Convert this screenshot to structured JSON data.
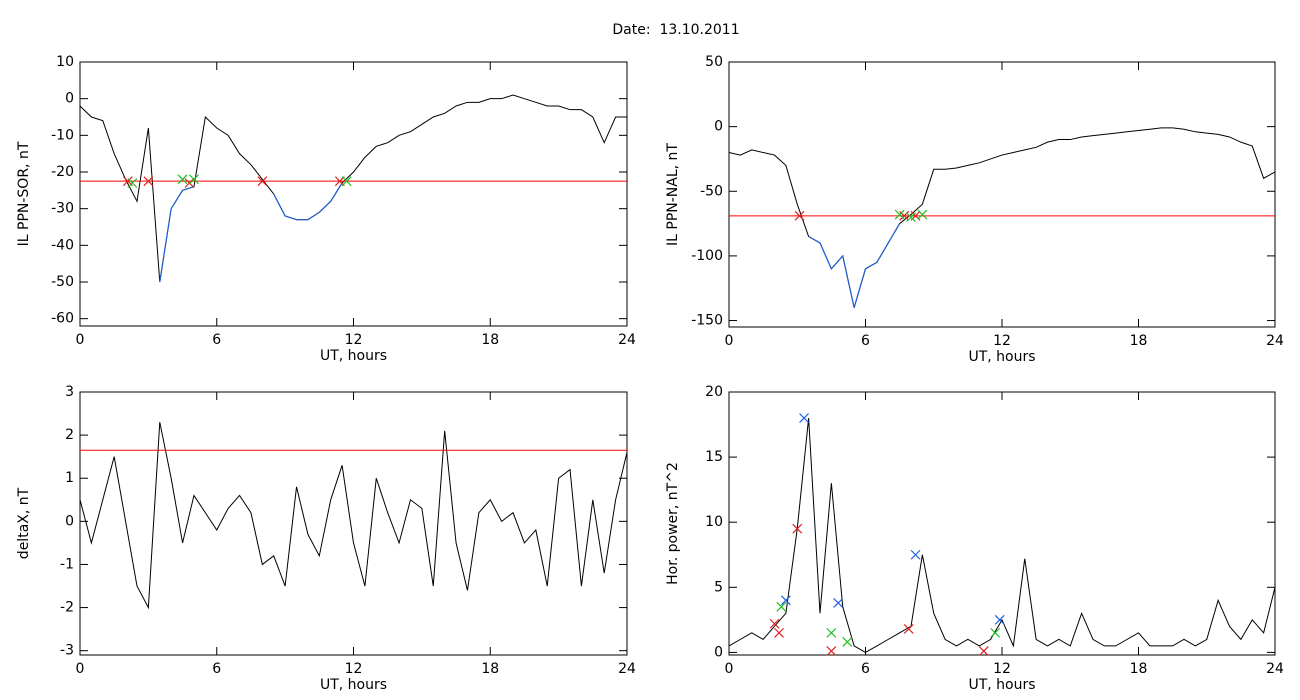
{
  "title": "Date:  13.10.2011",
  "chart_data": [
    {
      "type": "line",
      "ylabel": "IL PPN-SOR, nT",
      "xlabel": "UT, hours",
      "xlim": [
        0,
        24
      ],
      "xticks": [
        0,
        6,
        12,
        18,
        24
      ],
      "ylim": [
        -62,
        10
      ],
      "yticks": [
        10,
        0,
        -10,
        -20,
        -30,
        -40,
        -50,
        -60
      ],
      "color": "#000000",
      "below_color": "#1f5fd0",
      "threshold": -22.5,
      "threshold_color": "#ff0000",
      "x": [
        0,
        0.5,
        1,
        1.5,
        2,
        2.5,
        3,
        3.5,
        4,
        4.5,
        5,
        5.5,
        6,
        6.5,
        7,
        7.5,
        8,
        8.5,
        9,
        9.5,
        10,
        10.5,
        11,
        11.5,
        12,
        12.5,
        13,
        13.5,
        14,
        14.5,
        15,
        15.5,
        16,
        16.5,
        17,
        17.5,
        18,
        18.5,
        19,
        19.5,
        20,
        20.5,
        21,
        21.5,
        22,
        22.5,
        23,
        23.5,
        24
      ],
      "values": [
        -2,
        -5,
        -6,
        -15,
        -22,
        -28,
        -8,
        -50,
        -30,
        -25,
        -24,
        -5,
        -8,
        -10,
        -15,
        -18,
        -22,
        -26,
        -32,
        -33,
        -33,
        -31,
        -28,
        -23,
        -20,
        -16,
        -13,
        -12,
        -10,
        -9,
        -7,
        -5,
        -4,
        -2,
        -1,
        -1,
        0,
        0,
        1,
        0,
        -1,
        -2,
        -2,
        -3,
        -3,
        -5,
        -12,
        -5,
        -5
      ],
      "markers": [
        {
          "color": "#e02020",
          "x": [
            2.1,
            3.0,
            4.8,
            8.0,
            11.4
          ],
          "y": [
            -22.5,
            -22.5,
            -23,
            -22.5,
            -22.5
          ]
        },
        {
          "color": "#20c020",
          "x": [
            2.3,
            4.5,
            5.0,
            11.7
          ],
          "y": [
            -23,
            -22,
            -22,
            -22.5
          ]
        }
      ]
    },
    {
      "type": "line",
      "ylabel": "IL PPN-NAL, nT",
      "xlabel": "UT, hours",
      "xlim": [
        0,
        24
      ],
      "xticks": [
        0,
        6,
        12,
        18,
        24
      ],
      "ylim": [
        -155,
        50
      ],
      "yticks": [
        50,
        0,
        -50,
        -100,
        -150
      ],
      "color": "#000000",
      "below_color": "#1f5fd0",
      "threshold": -69,
      "threshold_color": "#ff0000",
      "x": [
        0,
        0.5,
        1,
        1.5,
        2,
        2.5,
        3,
        3.5,
        4,
        4.5,
        5,
        5.5,
        6,
        6.5,
        7,
        7.5,
        8,
        8.5,
        9,
        9.5,
        10,
        10.5,
        11,
        11.5,
        12,
        12.5,
        13,
        13.5,
        14,
        14.5,
        15,
        15.5,
        16,
        16.5,
        17,
        17.5,
        18,
        18.5,
        19,
        19.5,
        20,
        20.5,
        21,
        21.5,
        22,
        22.5,
        23,
        23.5,
        24
      ],
      "values": [
        -20,
        -22,
        -18,
        -20,
        -22,
        -30,
        -60,
        -85,
        -90,
        -110,
        -100,
        -140,
        -110,
        -105,
        -90,
        -75,
        -68,
        -60,
        -33,
        -33,
        -32,
        -30,
        -28,
        -25,
        -22,
        -20,
        -18,
        -16,
        -12,
        -10,
        -10,
        -8,
        -7,
        -6,
        -5,
        -4,
        -3,
        -2,
        -1,
        -1,
        -2,
        -4,
        -5,
        -6,
        -8,
        -12,
        -15,
        -40,
        -35
      ],
      "markers": [
        {
          "color": "#e02020",
          "x": [
            3.1,
            7.7,
            8.2
          ],
          "y": [
            -69,
            -69,
            -69
          ]
        },
        {
          "color": "#20c020",
          "x": [
            7.5,
            8.0,
            8.5
          ],
          "y": [
            -68,
            -70,
            -68
          ]
        }
      ]
    },
    {
      "type": "line",
      "ylabel": "deltaX, nT",
      "xlabel": "UT, hours",
      "xlim": [
        0,
        24
      ],
      "xticks": [
        0,
        6,
        12,
        18,
        24
      ],
      "ylim": [
        -3.1,
        3
      ],
      "yticks": [
        3,
        2,
        1,
        0,
        -1,
        -2,
        -3
      ],
      "color": "#000000",
      "threshold": 1.65,
      "threshold_color": "#ff0000",
      "x": [
        0,
        0.5,
        1,
        1.5,
        2,
        2.5,
        3,
        3.5,
        4,
        4.5,
        5,
        5.5,
        6,
        6.5,
        7,
        7.5,
        8,
        8.5,
        9,
        9.5,
        10,
        10.5,
        11,
        11.5,
        12,
        12.5,
        13,
        13.5,
        14,
        14.5,
        15,
        15.5,
        16,
        16.5,
        17,
        17.5,
        18,
        18.5,
        19,
        19.5,
        20,
        20.5,
        21,
        21.5,
        22,
        22.5,
        23,
        23.5,
        24
      ],
      "values": [
        0.5,
        -0.5,
        0.5,
        1.5,
        0,
        -1.5,
        -2,
        2.3,
        1,
        -0.5,
        0.6,
        0.2,
        -0.2,
        0.3,
        0.6,
        0.2,
        -1,
        -0.8,
        -1.5,
        0.8,
        -0.3,
        -0.8,
        0.5,
        1.3,
        -0.5,
        -1.5,
        1,
        0.2,
        -0.5,
        0.5,
        0.3,
        -1.5,
        2.1,
        -0.5,
        -1.6,
        0.2,
        0.5,
        0,
        0.2,
        -0.5,
        -0.2,
        -1.5,
        1,
        1.2,
        -1.5,
        0.5,
        -1.2,
        0.5,
        1.6
      ],
      "markers": []
    },
    {
      "type": "line",
      "ylabel": "Hor. power, nT^2",
      "xlabel": "UT, hours",
      "xlim": [
        0,
        24
      ],
      "xticks": [
        0,
        6,
        12,
        18,
        24
      ],
      "ylim": [
        -0.2,
        20
      ],
      "yticks": [
        20,
        15,
        10,
        5,
        0
      ],
      "color": "#000000",
      "x": [
        0,
        0.5,
        1,
        1.5,
        2,
        2.5,
        3,
        3.5,
        4,
        4.5,
        5,
        5.5,
        6,
        6.5,
        7,
        7.5,
        8,
        8.5,
        9,
        9.5,
        10,
        10.5,
        11,
        11.5,
        12,
        12.5,
        13,
        13.5,
        14,
        14.5,
        15,
        15.5,
        16,
        16.5,
        17,
        17.5,
        18,
        18.5,
        19,
        19.5,
        20,
        20.5,
        21,
        21.5,
        22,
        22.5,
        23,
        23.5,
        24
      ],
      "values": [
        0.5,
        1,
        1.5,
        1,
        2,
        3,
        9.5,
        18,
        3,
        13,
        3.5,
        0.5,
        0,
        0.5,
        1,
        1.5,
        2,
        7.5,
        3,
        1,
        0.5,
        1,
        0.5,
        1,
        2.5,
        0.5,
        7.2,
        1,
        0.5,
        1,
        0.5,
        3,
        1,
        0.5,
        0.5,
        1,
        1.5,
        0.5,
        0.5,
        0.5,
        1,
        0.5,
        1,
        4,
        2,
        1,
        2.5,
        1.5,
        5
      ],
      "markers": [
        {
          "color": "#2060e0",
          "x": [
            2.5,
            3.3,
            4.8,
            8.2,
            11.9
          ],
          "y": [
            4,
            18,
            3.8,
            7.5,
            2.5
          ]
        },
        {
          "color": "#e02020",
          "x": [
            2.0,
            2.2,
            3.0,
            4.5,
            7.9,
            11.2
          ],
          "y": [
            2.2,
            1.5,
            9.5,
            0.1,
            1.8,
            0.1
          ]
        },
        {
          "color": "#20c020",
          "x": [
            2.3,
            4.5,
            5.2,
            11.7
          ],
          "y": [
            3.5,
            1.5,
            0.8,
            1.5
          ]
        }
      ]
    }
  ]
}
